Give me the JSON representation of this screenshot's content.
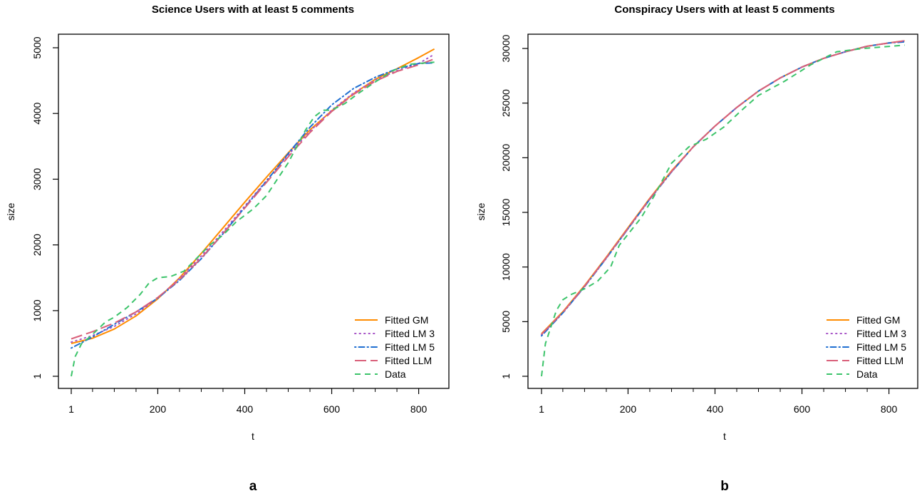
{
  "figure": {
    "panel_letters": [
      "a",
      "b"
    ]
  },
  "legend": {
    "entries": [
      {
        "label": "Fitted GM",
        "color": "#FF8C00",
        "dash": "solid"
      },
      {
        "label": "Fitted LM 3",
        "color": "#A855C7",
        "dash": "dotted"
      },
      {
        "label": "Fitted LM 5",
        "color": "#1F6FD1",
        "dash": "dotdash"
      },
      {
        "label": "Fitted LLM",
        "color": "#D9607A",
        "dash": "longdash"
      },
      {
        "label": "Data",
        "color": "#3CC46A",
        "dash": "dashed"
      }
    ],
    "placement": "bottom-right"
  },
  "chart_data": [
    {
      "type": "line",
      "title": "Science Users with at least 5 comments",
      "xlabel": "t",
      "ylabel": "size",
      "xlim": [
        1,
        840
      ],
      "ylim": [
        1,
        5000
      ],
      "xticks": [
        1,
        200,
        400,
        600,
        800
      ],
      "xtick_labels": [
        "1",
        "200",
        "400",
        "600",
        "800"
      ],
      "yticks": [
        1,
        1000,
        2000,
        3000,
        4000,
        5000
      ],
      "ytick_labels": [
        "1",
        "1000",
        "2000",
        "3000",
        "4000",
        "5000"
      ],
      "grid": false,
      "series": [
        {
          "name": "Fitted GM",
          "x": [
            1,
            50,
            100,
            150,
            200,
            250,
            300,
            350,
            400,
            450,
            500,
            550,
            600,
            650,
            700,
            750,
            800,
            836
          ],
          "y": [
            500,
            580,
            720,
            920,
            1180,
            1500,
            1870,
            2260,
            2650,
            3030,
            3400,
            3750,
            4040,
            4300,
            4520,
            4680,
            4850,
            4980
          ]
        },
        {
          "name": "Fitted LM 3",
          "x": [
            1,
            50,
            100,
            150,
            200,
            250,
            300,
            350,
            400,
            450,
            500,
            550,
            600,
            650,
            700,
            750,
            800,
            836
          ],
          "y": [
            520,
            620,
            760,
            950,
            1190,
            1490,
            1830,
            2200,
            2590,
            2980,
            3370,
            3730,
            4050,
            4310,
            4510,
            4650,
            4760,
            4900
          ]
        },
        {
          "name": "Fitted LM 5",
          "x": [
            1,
            50,
            100,
            150,
            200,
            250,
            300,
            350,
            400,
            450,
            500,
            550,
            600,
            650,
            700,
            750,
            800,
            836
          ],
          "y": [
            430,
            600,
            790,
            980,
            1190,
            1460,
            1790,
            2170,
            2570,
            2970,
            3390,
            3790,
            4130,
            4380,
            4550,
            4680,
            4760,
            4770
          ]
        },
        {
          "name": "Fitted LLM",
          "x": [
            1,
            50,
            100,
            150,
            200,
            250,
            300,
            350,
            400,
            450,
            500,
            550,
            600,
            650,
            700,
            750,
            800,
            836
          ],
          "y": [
            570,
            680,
            810,
            980,
            1200,
            1470,
            1800,
            2170,
            2560,
            2950,
            3340,
            3710,
            4030,
            4290,
            4490,
            4640,
            4740,
            4830
          ]
        },
        {
          "name": "Data",
          "x": [
            1,
            10,
            25,
            40,
            60,
            80,
            100,
            130,
            160,
            180,
            200,
            230,
            260,
            290,
            320,
            350,
            380,
            400,
            420,
            450,
            480,
            500,
            520,
            540,
            560,
            580,
            600,
            630,
            660,
            700,
            740,
            780,
            836
          ],
          "y": [
            1,
            300,
            500,
            580,
            700,
            830,
            900,
            1050,
            1250,
            1420,
            1500,
            1520,
            1600,
            1800,
            2000,
            2150,
            2350,
            2450,
            2550,
            2750,
            3050,
            3250,
            3500,
            3750,
            3950,
            4050,
            4050,
            4150,
            4300,
            4480,
            4650,
            4750,
            4780
          ]
        }
      ]
    },
    {
      "type": "line",
      "title": "Conspiracy Users with at least 5 comments",
      "xlabel": "t",
      "ylabel": "size",
      "xlim": [
        1,
        840
      ],
      "ylim": [
        1,
        30000
      ],
      "xticks": [
        1,
        200,
        400,
        600,
        800
      ],
      "xtick_labels": [
        "1",
        "200",
        "400",
        "600",
        "800"
      ],
      "yticks": [
        1,
        5000,
        10000,
        15000,
        20000,
        25000,
        30000
      ],
      "ytick_labels": [
        "1",
        "5000",
        "10000",
        "15000",
        "20000",
        "25000",
        "30000"
      ],
      "grid": false,
      "series": [
        {
          "name": "Fitted GM",
          "x": [
            1,
            50,
            100,
            150,
            200,
            250,
            300,
            350,
            400,
            450,
            500,
            550,
            600,
            650,
            700,
            750,
            800,
            836
          ],
          "y": [
            3900,
            5900,
            8300,
            10900,
            13600,
            16300,
            18800,
            21000,
            22900,
            24600,
            26100,
            27300,
            28300,
            29100,
            29700,
            30200,
            30500,
            30700
          ]
        },
        {
          "name": "Fitted LM 3",
          "x": [
            1,
            50,
            100,
            150,
            200,
            250,
            300,
            350,
            400,
            450,
            500,
            550,
            600,
            650,
            700,
            750,
            800,
            836
          ],
          "y": [
            3800,
            5800,
            8200,
            10800,
            13500,
            16200,
            18700,
            21000,
            22900,
            24600,
            26100,
            27300,
            28300,
            29100,
            29700,
            30200,
            30500,
            30700
          ]
        },
        {
          "name": "Fitted LM 5",
          "x": [
            1,
            50,
            100,
            150,
            200,
            250,
            300,
            350,
            400,
            450,
            500,
            550,
            600,
            650,
            700,
            750,
            800,
            836
          ],
          "y": [
            3700,
            5800,
            8200,
            10800,
            13500,
            16200,
            18700,
            21000,
            22900,
            24600,
            26100,
            27300,
            28300,
            29100,
            29700,
            30200,
            30500,
            30600
          ]
        },
        {
          "name": "Fitted LLM",
          "x": [
            1,
            50,
            100,
            150,
            200,
            250,
            300,
            350,
            400,
            450,
            500,
            550,
            600,
            650,
            700,
            750,
            800,
            836
          ],
          "y": [
            3850,
            5850,
            8250,
            10850,
            13550,
            16250,
            18750,
            21000,
            22900,
            24600,
            26100,
            27300,
            28300,
            29100,
            29700,
            30200,
            30500,
            30700
          ]
        },
        {
          "name": "Data",
          "x": [
            1,
            10,
            20,
            35,
            50,
            70,
            100,
            130,
            160,
            180,
            200,
            230,
            260,
            300,
            340,
            380,
            420,
            460,
            500,
            560,
            620,
            680,
            740,
            836
          ],
          "y": [
            1,
            3000,
            4200,
            6000,
            7000,
            7500,
            8000,
            8700,
            10000,
            12000,
            13000,
            14500,
            16500,
            19500,
            21000,
            21700,
            22800,
            24300,
            25700,
            27000,
            28500,
            29700,
            30000,
            30300
          ]
        }
      ]
    }
  ]
}
